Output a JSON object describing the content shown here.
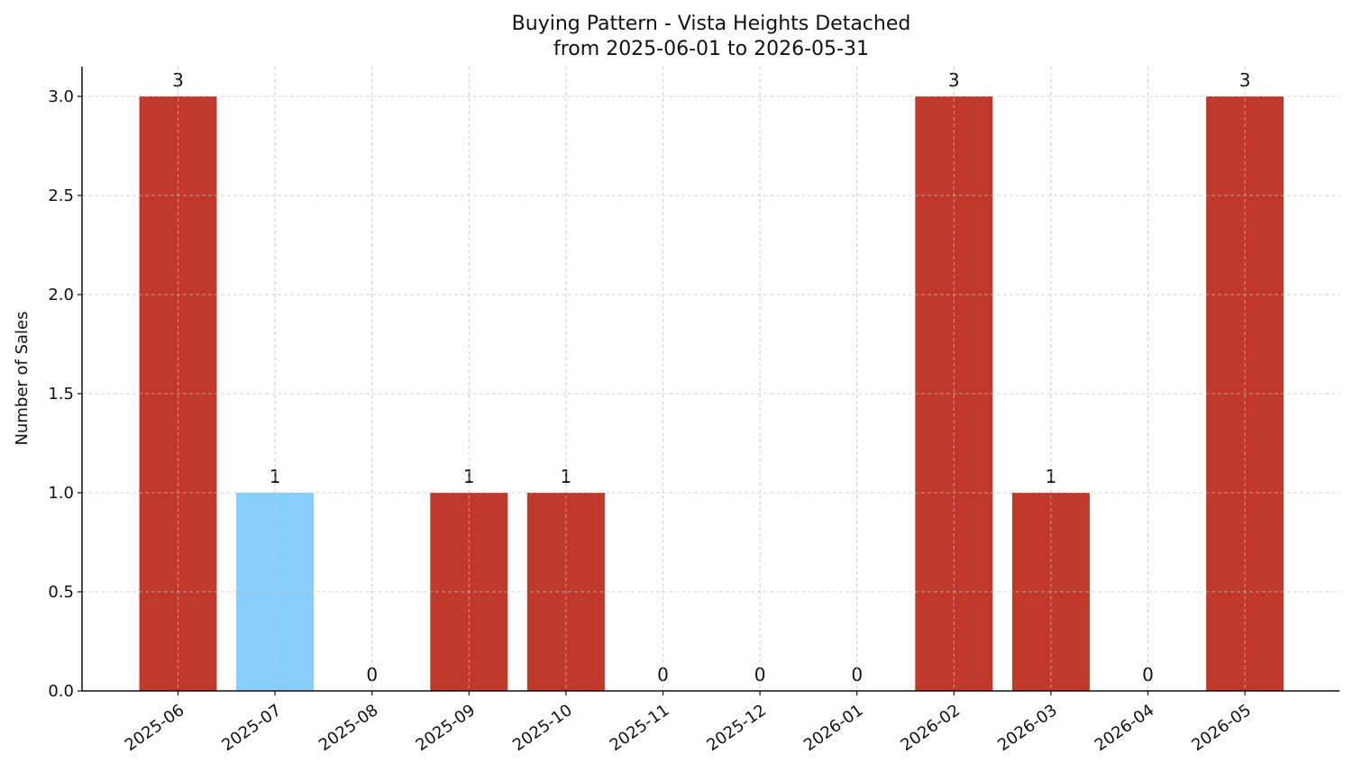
{
  "chart_data": {
    "type": "bar",
    "title": "Buying Pattern - Vista Heights Detached",
    "subtitle": "from 2025-06-01 to 2026-05-31",
    "xlabel": "",
    "ylabel": "Number of Sales",
    "categories": [
      "2025-06",
      "2025-07",
      "2025-08",
      "2025-09",
      "2025-10",
      "2025-11",
      "2025-12",
      "2026-01",
      "2026-02",
      "2026-03",
      "2026-04",
      "2026-05"
    ],
    "values": [
      3,
      1,
      0,
      1,
      1,
      0,
      0,
      0,
      3,
      1,
      0,
      3
    ],
    "bar_colors": [
      "#c0392b",
      "#87cefa",
      "#c0392b",
      "#c0392b",
      "#c0392b",
      "#c0392b",
      "#c0392b",
      "#c0392b",
      "#c0392b",
      "#c0392b",
      "#c0392b",
      "#c0392b"
    ],
    "data_labels": [
      "3",
      "1",
      "0",
      "1",
      "1",
      "0",
      "0",
      "0",
      "3",
      "1",
      "0",
      "3"
    ],
    "y_ticks": [
      "0.0",
      "0.5",
      "1.0",
      "1.5",
      "2.0",
      "2.5",
      "3.0"
    ],
    "ylim": [
      0,
      3.15
    ],
    "grid": true,
    "grid_style": "dashed",
    "x_tick_rotation": "35deg"
  }
}
